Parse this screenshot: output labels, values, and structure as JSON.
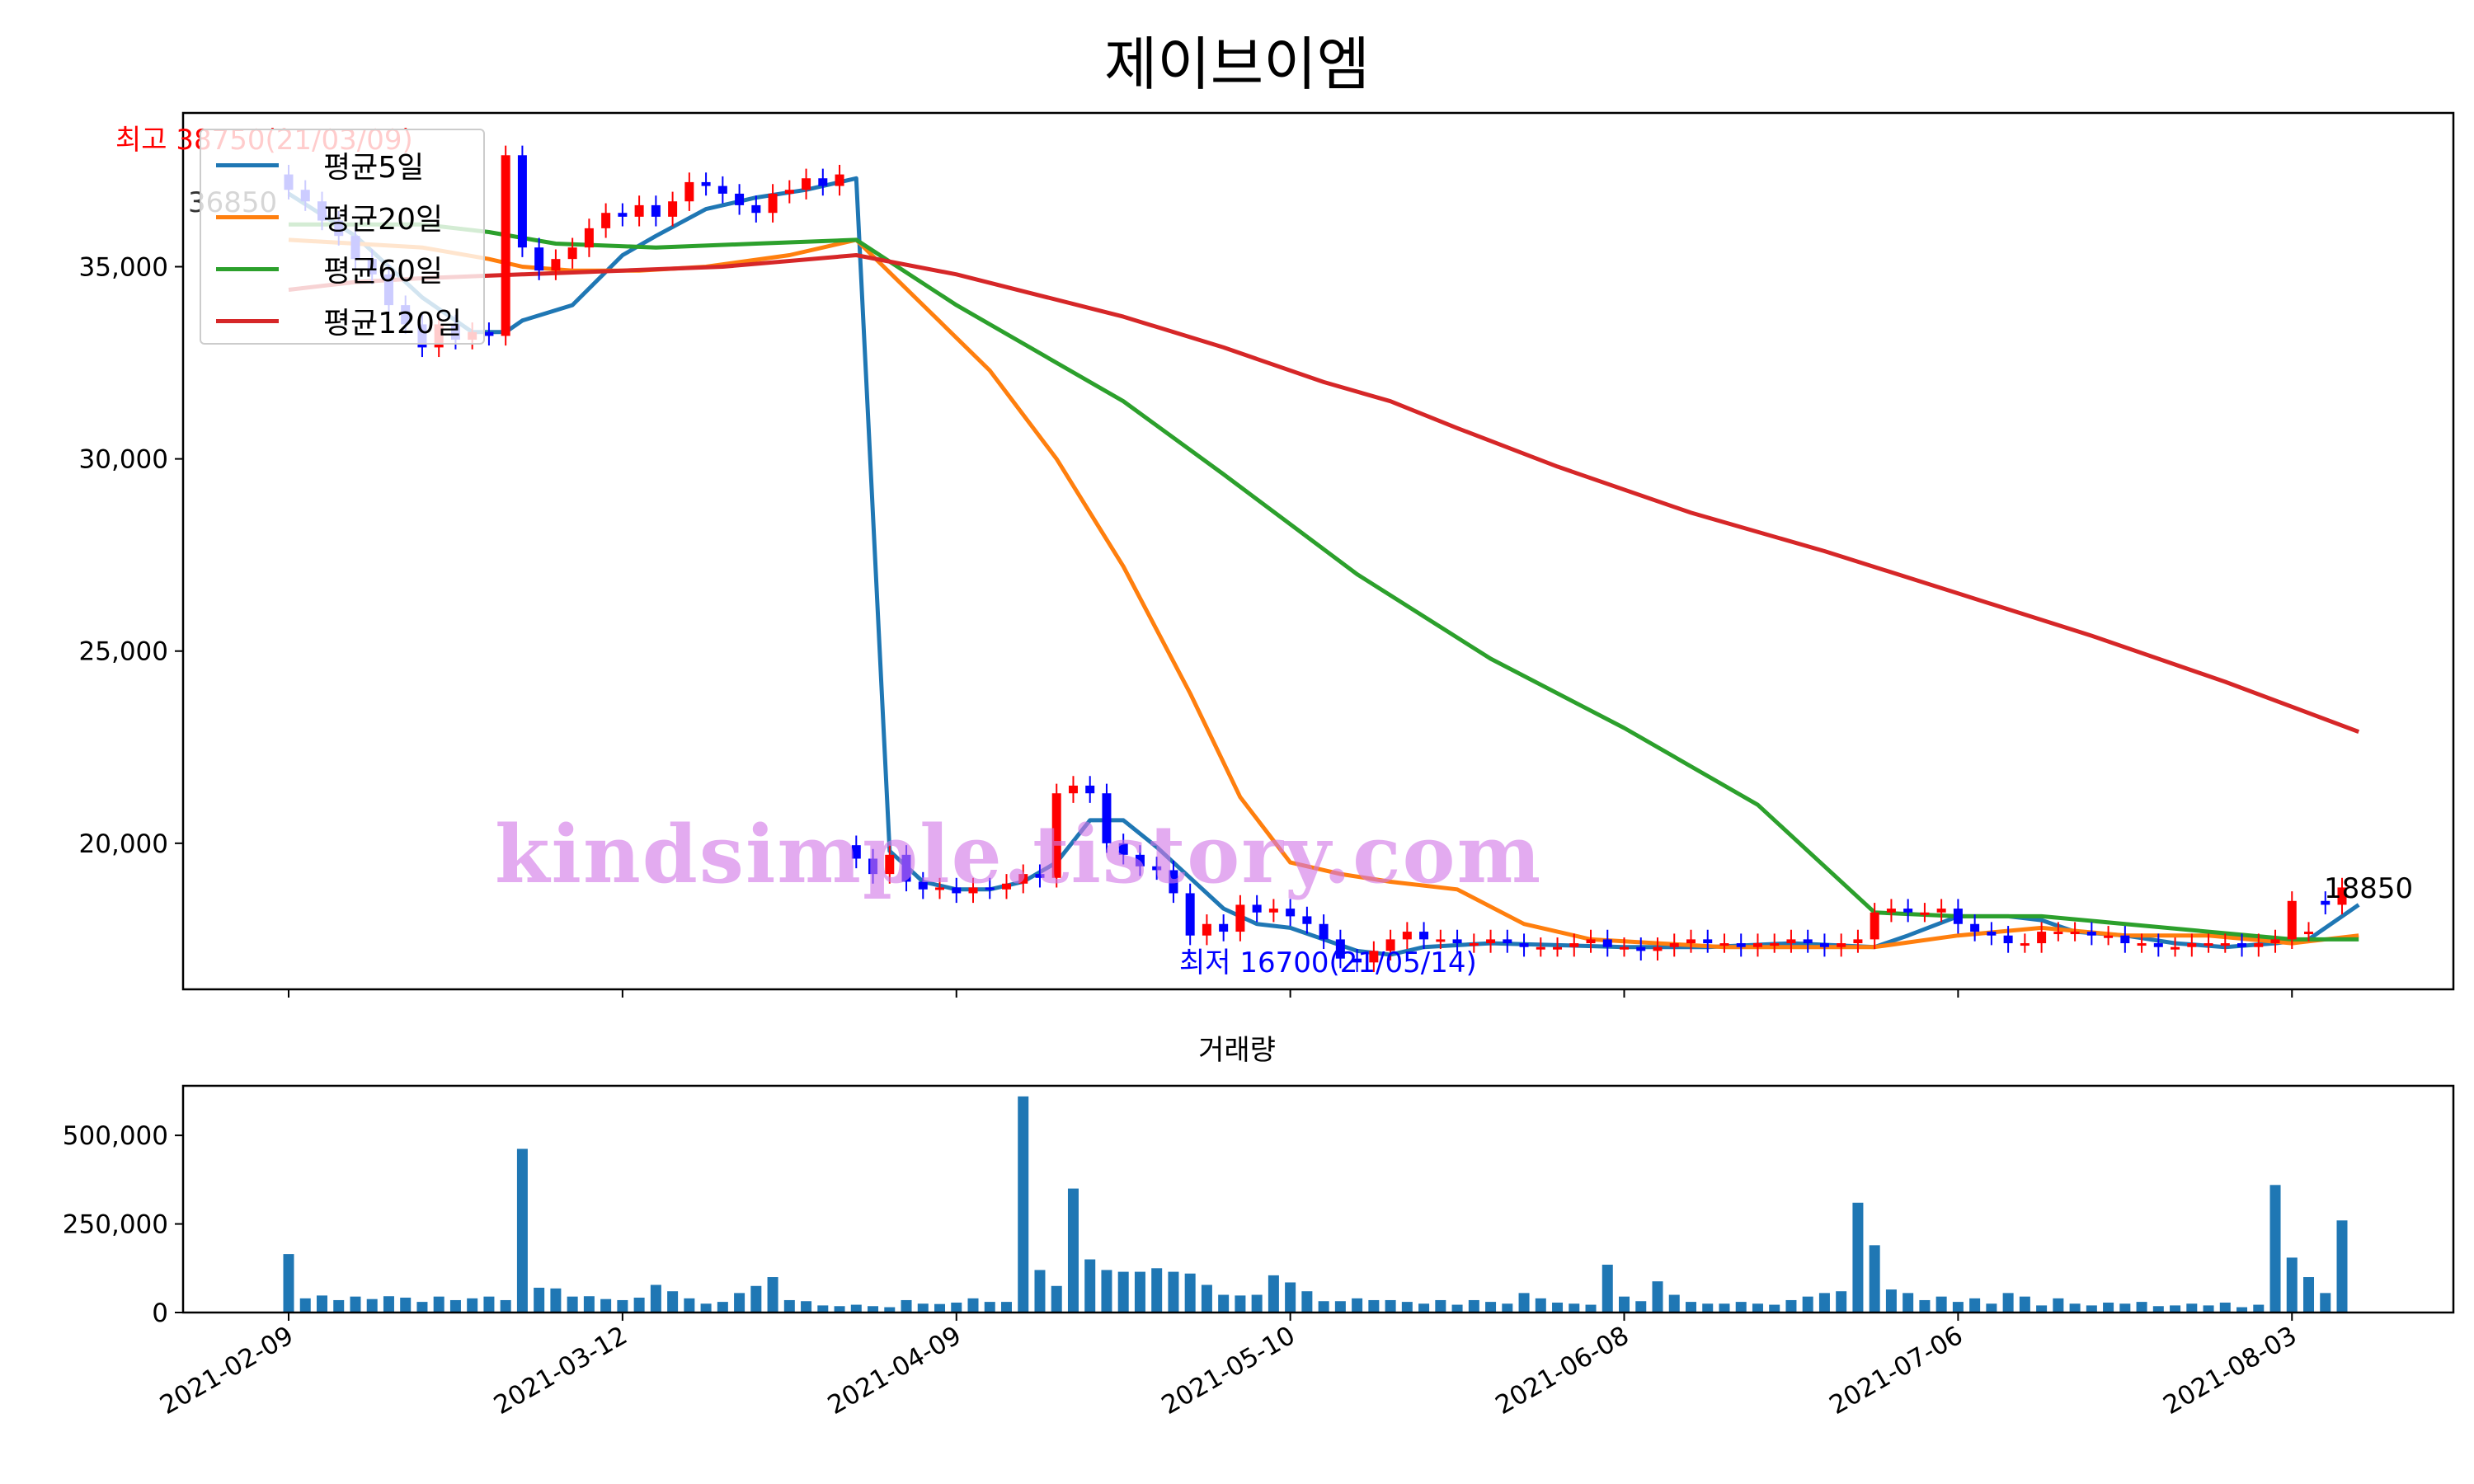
{
  "chart_data": [
    {
      "type": "candlestick",
      "title": "제이브이엠",
      "ylim": [
        16200,
        39000
      ],
      "yticks": [
        20000,
        25000,
        30000,
        35000
      ],
      "ytick_labels": [
        "20,000",
        "25,000",
        "30,000",
        "35,000"
      ],
      "xticks": [
        "2021-02-09",
        "2021-03-12",
        "2021-04-09",
        "2021-05-10",
        "2021-06-08",
        "2021-07-06",
        "2021-08-03"
      ],
      "x": [
        "2021-02-09",
        "2021-02-10",
        "2021-02-15",
        "2021-02-16",
        "2021-02-17",
        "2021-02-18",
        "2021-02-19",
        "2021-02-22",
        "2021-02-23",
        "2021-02-24",
        "2021-02-25",
        "2021-02-26",
        "2021-03-02",
        "2021-03-03",
        "2021-03-04",
        "2021-03-05",
        "2021-03-08",
        "2021-03-09",
        "2021-03-10",
        "2021-03-11",
        "2021-03-12",
        "2021-03-15",
        "2021-03-16",
        "2021-03-17",
        "2021-03-18",
        "2021-03-19",
        "2021-03-22",
        "2021-03-23",
        "2021-03-24",
        "2021-03-25",
        "2021-03-26",
        "2021-03-29",
        "2021-03-30",
        "2021-03-31",
        "2021-04-01",
        "2021-04-02",
        "2021-04-05",
        "2021-04-06",
        "2021-04-07",
        "2021-04-08",
        "2021-04-09",
        "2021-04-12",
        "2021-04-13",
        "2021-04-14",
        "2021-04-15",
        "2021-04-16",
        "2021-04-19",
        "2021-04-20",
        "2021-04-21",
        "2021-04-22",
        "2021-04-23",
        "2021-04-26",
        "2021-04-27",
        "2021-04-28",
        "2021-04-29",
        "2021-04-30",
        "2021-05-03",
        "2021-05-04",
        "2021-05-06",
        "2021-05-07",
        "2021-05-10",
        "2021-05-11",
        "2021-05-12",
        "2021-05-13",
        "2021-05-14",
        "2021-05-17",
        "2021-05-18",
        "2021-05-20",
        "2021-05-21",
        "2021-05-24",
        "2021-05-25",
        "2021-05-26",
        "2021-05-27",
        "2021-05-28",
        "2021-05-31",
        "2021-06-01",
        "2021-06-02",
        "2021-06-03",
        "2021-06-04",
        "2021-06-07",
        "2021-06-08",
        "2021-06-09",
        "2021-06-10",
        "2021-06-11",
        "2021-06-14",
        "2021-06-15",
        "2021-06-16",
        "2021-06-17",
        "2021-06-18",
        "2021-06-21",
        "2021-06-22",
        "2021-06-23",
        "2021-06-24",
        "2021-06-25",
        "2021-06-28",
        "2021-06-29",
        "2021-06-30",
        "2021-07-01",
        "2021-07-02",
        "2021-07-05",
        "2021-07-06",
        "2021-07-07",
        "2021-07-08",
        "2021-07-09",
        "2021-07-12",
        "2021-07-13",
        "2021-07-14",
        "2021-07-15",
        "2021-07-16",
        "2021-07-19",
        "2021-07-20",
        "2021-07-21",
        "2021-07-22",
        "2021-07-23",
        "2021-07-26",
        "2021-07-27",
        "2021-07-28",
        "2021-07-29",
        "2021-07-30",
        "2021-08-02",
        "2021-08-03",
        "2021-08-04",
        "2021-08-05",
        "2021-08-06"
      ],
      "open": [
        37400,
        37000,
        36700,
        36200,
        35800,
        35200,
        34800,
        34000,
        33500,
        32900,
        33500,
        33100,
        33300,
        33200,
        37900,
        35500,
        34900,
        35200,
        35500,
        36000,
        36400,
        36300,
        36600,
        36300,
        36700,
        37200,
        37100,
        36900,
        36600,
        36400,
        36900,
        37000,
        37300,
        37100,
        19950,
        19600,
        19200,
        19700,
        19000,
        18800,
        18850,
        18700,
        18850,
        18800,
        18950,
        19200,
        19100,
        21300,
        21500,
        21300,
        20000,
        19700,
        19400,
        19300,
        18700,
        17600,
        17900,
        17700,
        18400,
        18200,
        18300,
        18100,
        17900,
        17500,
        17000,
        16900,
        17200,
        17500,
        17700,
        17500,
        17500,
        17400,
        17400,
        17500,
        17400,
        17300,
        17300,
        17300,
        17400,
        17500,
        17300,
        17300,
        17200,
        17300,
        17400,
        17500,
        17400,
        17400,
        17300,
        17400,
        17400,
        17500,
        17400,
        17300,
        17400,
        17500,
        18200,
        18300,
        18200,
        18200,
        18300,
        17900,
        17700,
        17600,
        17400,
        17400,
        17700,
        17700,
        17700,
        17600,
        17600,
        17400,
        17400,
        17300,
        17300,
        17400,
        17400,
        17400,
        17300,
        17400,
        17500,
        17700,
        18500,
        18400
      ],
      "close": [
        37000,
        36700,
        36200,
        35800,
        35200,
        34800,
        34000,
        33500,
        32900,
        33500,
        33100,
        33300,
        33200,
        37900,
        35500,
        34900,
        35200,
        35500,
        36000,
        36400,
        36300,
        36600,
        36300,
        36700,
        37200,
        37100,
        36900,
        36600,
        36400,
        36900,
        37000,
        37300,
        37100,
        37400,
        19600,
        19200,
        19700,
        19000,
        18800,
        18850,
        18700,
        18850,
        18800,
        18950,
        19200,
        19100,
        21300,
        21500,
        21300,
        20000,
        19700,
        19400,
        19300,
        18700,
        17600,
        17900,
        17700,
        18400,
        18200,
        18300,
        18100,
        17900,
        17500,
        17000,
        16900,
        17200,
        17500,
        17700,
        17500,
        17500,
        17400,
        17400,
        17500,
        17400,
        17300,
        17300,
        17300,
        17400,
        17500,
        17300,
        17300,
        17200,
        17300,
        17400,
        17500,
        17400,
        17400,
        17300,
        17400,
        17400,
        17500,
        17400,
        17300,
        17400,
        17500,
        18200,
        18300,
        18200,
        18200,
        18300,
        17900,
        17700,
        17600,
        17400,
        17400,
        17700,
        17700,
        17700,
        17600,
        17600,
        17400,
        17400,
        17300,
        17300,
        17400,
        17400,
        17400,
        17300,
        17400,
        17500,
        18500,
        17700,
        18400,
        18850
      ],
      "volume": [
        165000,
        40000,
        48000,
        35000,
        45000,
        38000,
        46000,
        42000,
        30000,
        45000,
        35000,
        40000,
        45000,
        35000,
        462000,
        70000,
        68000,
        45000,
        46000,
        38000,
        35000,
        42000,
        78000,
        60000,
        40000,
        25000,
        30000,
        55000,
        75000,
        100000,
        35000,
        32000,
        20000,
        18000,
        22000,
        18000,
        15000,
        35000,
        25000,
        24000,
        28000,
        40000,
        30000,
        30000,
        610000,
        120000,
        75000,
        350000,
        150000,
        120000,
        115000,
        115000,
        125000,
        115000,
        110000,
        78000,
        50000,
        48000,
        50000,
        105000,
        85000,
        60000,
        32000,
        32000,
        40000,
        35000,
        35000,
        30000,
        25000,
        35000,
        22000,
        35000,
        30000,
        25000,
        55000,
        40000,
        28000,
        25000,
        22000,
        135000,
        45000,
        32000,
        88000,
        50000,
        30000,
        25000,
        25000,
        30000,
        25000,
        22000,
        35000,
        45000,
        55000,
        60000,
        310000,
        190000,
        65000,
        55000,
        35000,
        45000,
        30000,
        40000,
        25000,
        55000,
        45000,
        20000,
        40000,
        25000,
        20000,
        28000,
        25000,
        30000,
        18000,
        20000,
        25000,
        20000,
        28000,
        15000,
        22000,
        360000,
        155000,
        100000,
        55000,
        260000
      ],
      "ma_lines": [
        {
          "name": "평균5일",
          "color": "#1f77b4",
          "values": [
            [
              0,
              36900
            ],
            [
              4,
              35800
            ],
            [
              8,
              34200
            ],
            [
              11,
              33300
            ],
            [
              13,
              33300
            ],
            [
              14,
              33600
            ],
            [
              17,
              34000
            ],
            [
              20,
              35300
            ],
            [
              22,
              35800
            ],
            [
              25,
              36500
            ],
            [
              28,
              36800
            ],
            [
              31,
              37000
            ],
            [
              33,
              37200
            ],
            [
              34,
              37300
            ],
            [
              36,
              19800
            ],
            [
              38,
              19000
            ],
            [
              40,
              18800
            ],
            [
              42,
              18800
            ],
            [
              44,
              19000
            ],
            [
              46,
              19500
            ],
            [
              48,
              20600
            ],
            [
              50,
              20600
            ],
            [
              52,
              19900
            ],
            [
              54,
              19100
            ],
            [
              56,
              18300
            ],
            [
              58,
              17900
            ],
            [
              60,
              17800
            ],
            [
              62,
              17500
            ],
            [
              64,
              17200
            ],
            [
              66,
              17100
            ],
            [
              68,
              17300
            ],
            [
              72,
              17400
            ],
            [
              80,
              17300
            ],
            [
              85,
              17300
            ],
            [
              90,
              17400
            ],
            [
              95,
              17300
            ],
            [
              97,
              17600
            ],
            [
              100,
              18100
            ],
            [
              103,
              18100
            ],
            [
              105,
              18000
            ],
            [
              107,
              17700
            ],
            [
              110,
              17600
            ],
            [
              113,
              17400
            ],
            [
              116,
              17300
            ],
            [
              119,
              17400
            ],
            [
              121,
              17500
            ],
            [
              123,
              18100
            ],
            [
              124,
              18400
            ]
          ]
        },
        {
          "name": "평균20일",
          "color": "#ff7f0e",
          "values": [
            [
              0,
              35700
            ],
            [
              4,
              35600
            ],
            [
              8,
              35500
            ],
            [
              12,
              35200
            ],
            [
              14,
              35000
            ],
            [
              17,
              34900
            ],
            [
              21,
              34900
            ],
            [
              25,
              35000
            ],
            [
              30,
              35300
            ],
            [
              34,
              35700
            ],
            [
              38,
              34000
            ],
            [
              42,
              32300
            ],
            [
              46,
              30000
            ],
            [
              50,
              27200
            ],
            [
              54,
              23900
            ],
            [
              57,
              21200
            ],
            [
              60,
              19500
            ],
            [
              63,
              19200
            ],
            [
              66,
              19000
            ],
            [
              70,
              18800
            ],
            [
              74,
              17900
            ],
            [
              78,
              17500
            ],
            [
              82,
              17400
            ],
            [
              86,
              17300
            ],
            [
              90,
              17300
            ],
            [
              95,
              17300
            ],
            [
              100,
              17600
            ],
            [
              105,
              17800
            ],
            [
              110,
              17600
            ],
            [
              115,
              17600
            ],
            [
              120,
              17400
            ],
            [
              124,
              17600
            ]
          ]
        },
        {
          "name": "평균60일",
          "color": "#2ca02c",
          "values": [
            [
              0,
              36100
            ],
            [
              4,
              36100
            ],
            [
              8,
              36100
            ],
            [
              12,
              35900
            ],
            [
              16,
              35600
            ],
            [
              22,
              35500
            ],
            [
              28,
              35600
            ],
            [
              34,
              35700
            ],
            [
              40,
              34000
            ],
            [
              50,
              31500
            ],
            [
              56,
              29600
            ],
            [
              64,
              27000
            ],
            [
              72,
              24800
            ],
            [
              80,
              23000
            ],
            [
              88,
              21000
            ],
            [
              95,
              18200
            ],
            [
              100,
              18100
            ],
            [
              105,
              18100
            ],
            [
              110,
              17900
            ],
            [
              115,
              17700
            ],
            [
              120,
              17500
            ],
            [
              124,
              17500
            ]
          ]
        },
        {
          "name": "평균120일",
          "color": "#d62728",
          "values": [
            [
              0,
              34400
            ],
            [
              4,
              34600
            ],
            [
              8,
              34700
            ],
            [
              14,
              34800
            ],
            [
              20,
              34900
            ],
            [
              26,
              35000
            ],
            [
              34,
              35300
            ],
            [
              40,
              34800
            ],
            [
              50,
              33700
            ],
            [
              56,
              32900
            ],
            [
              62,
              32000
            ],
            [
              66,
              31500
            ],
            [
              70,
              30800
            ],
            [
              76,
              29800
            ],
            [
              84,
              28600
            ],
            [
              92,
              27600
            ],
            [
              100,
              26500
            ],
            [
              108,
              25400
            ],
            [
              116,
              24200
            ],
            [
              124,
              22900
            ]
          ]
        }
      ],
      "annotations": {
        "high": "최고 38750(21/03/09)",
        "start": "36850",
        "low": "최저 16700(21/05/14)",
        "last": "18850"
      },
      "legend_position": "upper-left"
    },
    {
      "type": "bar",
      "title": "거래량",
      "ylim": [
        0,
        640000
      ],
      "yticks": [
        0,
        250000,
        500000
      ],
      "ytick_labels": [
        "0",
        "250,000",
        "500,000"
      ],
      "color": "#1f77b4"
    }
  ],
  "watermark": "kindsimple.tistory.com",
  "colors": {
    "up": "#ff0000",
    "down": "#0000ff",
    "volume": "#1f77b4"
  }
}
